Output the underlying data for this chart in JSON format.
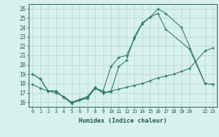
{
  "xlabel": "Humidex (Indice chaleur)",
  "background_color": "#d8f0ee",
  "grid_color": "#b0d4d0",
  "line_color": "#2a7a6a",
  "tick_color": "#1a5c4a",
  "xlim": [
    -0.5,
    23.5
  ],
  "ylim": [
    15.5,
    26.5
  ],
  "xticks": [
    0,
    1,
    2,
    3,
    4,
    5,
    6,
    7,
    8,
    9,
    10,
    11,
    12,
    13,
    14,
    15,
    16,
    17,
    18,
    19,
    20,
    22,
    23
  ],
  "xtick_labels": [
    "0",
    "1",
    "2",
    "3",
    "4",
    "5",
    "6",
    "7",
    "8",
    "9",
    "10",
    "11",
    "12",
    "13",
    "14",
    "15",
    "16",
    "17",
    "18",
    "19",
    "20",
    "22",
    "23"
  ],
  "yticks": [
    16,
    17,
    18,
    19,
    20,
    21,
    22,
    23,
    24,
    25,
    26
  ],
  "series1_x": [
    0,
    1,
    2,
    3,
    4,
    5,
    6,
    7,
    8,
    9,
    10,
    11,
    12,
    13,
    14,
    15,
    16,
    17,
    20,
    22,
    23
  ],
  "series1_y": [
    19.0,
    18.5,
    17.2,
    17.2,
    16.5,
    15.9,
    16.2,
    16.5,
    17.5,
    17.2,
    19.8,
    20.8,
    21.0,
    22.8,
    24.4,
    25.1,
    25.5,
    23.8,
    21.7,
    18.0,
    17.9
  ],
  "series2_x": [
    0,
    1,
    2,
    3,
    4,
    5,
    6,
    7,
    8,
    9,
    10,
    11,
    12,
    13,
    14,
    15,
    16,
    17,
    19,
    22,
    23
  ],
  "series2_y": [
    19.0,
    18.5,
    17.2,
    17.2,
    16.5,
    15.9,
    16.2,
    16.4,
    17.5,
    17.0,
    17.1,
    19.8,
    20.5,
    23.0,
    24.5,
    25.1,
    26.0,
    25.5,
    24.0,
    18.0,
    17.9
  ],
  "series3_x": [
    0,
    1,
    2,
    3,
    4,
    5,
    6,
    7,
    8,
    9,
    10,
    11,
    12,
    13,
    14,
    15,
    16,
    17,
    18,
    19,
    20,
    22,
    23
  ],
  "series3_y": [
    17.9,
    17.5,
    17.2,
    17.0,
    16.6,
    16.0,
    16.3,
    16.6,
    17.6,
    17.0,
    17.2,
    17.4,
    17.6,
    17.8,
    18.0,
    18.3,
    18.6,
    18.8,
    19.0,
    19.3,
    19.6,
    21.5,
    21.8
  ]
}
